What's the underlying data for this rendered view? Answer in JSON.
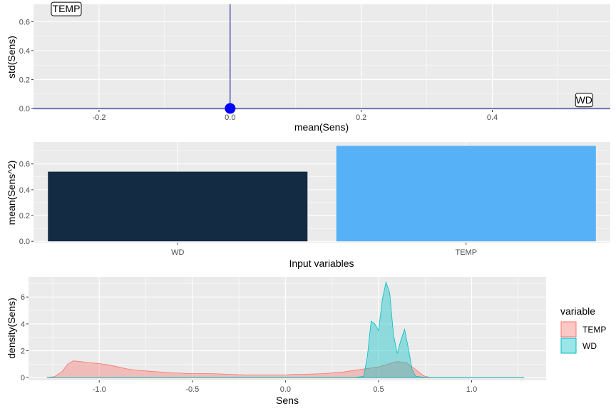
{
  "chart_data": [
    {
      "type": "scatter",
      "xlabel": "mean(Sens)",
      "ylabel": "std(Sens)",
      "xlim": [
        -0.3,
        0.58
      ],
      "ylim": [
        -0.01,
        0.72
      ],
      "x_ticks": [
        -0.2,
        0.0,
        0.2,
        0.4
      ],
      "x_tick_labels": [
        "-0.2",
        "0.0",
        "0.2",
        "0.4"
      ],
      "y_ticks": [
        0.0,
        0.2,
        0.4,
        0.6
      ],
      "y_tick_labels": [
        "0.0",
        "0.2",
        "0.4",
        "0.6"
      ],
      "points": [
        {
          "x": 0.0,
          "y": 0.0,
          "color": "#0000FF"
        }
      ],
      "vline_x": 0.0,
      "hline_y": 0.0,
      "line_color": "#00008B",
      "labels": [
        {
          "text": "TEMP",
          "x": -0.25,
          "y": 0.69
        },
        {
          "text": "WD",
          "x": 0.54,
          "y": 0.06
        }
      ],
      "grid": true
    },
    {
      "type": "bar",
      "xlabel": "Input variables",
      "ylabel": "mean(Sens^2)",
      "categories": [
        "WD",
        "TEMP"
      ],
      "values": [
        0.54,
        0.74
      ],
      "colors": [
        "#132B43",
        "#56B1F7"
      ],
      "ylim": [
        -0.01,
        0.77
      ],
      "y_ticks": [
        0.0,
        0.2,
        0.4,
        0.6
      ],
      "y_tick_labels": [
        "0.0",
        "0.2",
        "0.4",
        "0.6"
      ],
      "grid": true
    },
    {
      "type": "area",
      "xlabel": "Sens",
      "ylabel": "density(Sens)",
      "xlim": [
        -1.38,
        1.4
      ],
      "ylim": [
        -0.2,
        7.5
      ],
      "x_ticks": [
        -1.0,
        -0.5,
        0.0,
        0.5,
        1.0
      ],
      "x_tick_labels": [
        "-1.0",
        "-0.5",
        "0.0",
        "0.5",
        "1.0"
      ],
      "y_ticks": [
        0,
        2,
        4,
        6
      ],
      "y_tick_labels": [
        "0",
        "2",
        "4",
        "6"
      ],
      "legend": {
        "title": "variable",
        "position": "right"
      },
      "grid": true,
      "series": [
        {
          "name": "TEMP",
          "fill": "#F8766D",
          "x": [
            -1.28,
            -1.24,
            -1.2,
            -1.17,
            -1.14,
            -1.1,
            -1.05,
            -1.0,
            -0.95,
            -0.9,
            -0.85,
            -0.8,
            -0.75,
            -0.7,
            -0.6,
            -0.5,
            -0.4,
            -0.3,
            -0.2,
            -0.1,
            0.0,
            0.05,
            0.1,
            0.2,
            0.3,
            0.35,
            0.4,
            0.45,
            0.5,
            0.55,
            0.6,
            0.65,
            0.7,
            0.74,
            0.78,
            1.28
          ],
          "values": [
            0.0,
            0.08,
            0.45,
            1.0,
            1.25,
            1.2,
            1.1,
            1.05,
            0.95,
            0.8,
            0.65,
            0.55,
            0.5,
            0.45,
            0.35,
            0.3,
            0.3,
            0.25,
            0.2,
            0.2,
            0.2,
            0.25,
            0.25,
            0.3,
            0.4,
            0.5,
            0.6,
            0.7,
            0.8,
            1.0,
            1.2,
            1.1,
            0.6,
            0.15,
            0.0,
            0.0
          ]
        },
        {
          "name": "WD",
          "fill": "#00BFC4",
          "x": [
            -1.28,
            0.38,
            0.42,
            0.44,
            0.46,
            0.48,
            0.5,
            0.52,
            0.54,
            0.56,
            0.58,
            0.6,
            0.62,
            0.64,
            0.66,
            0.68,
            0.7,
            0.75,
            1.28
          ],
          "values": [
            0.0,
            0.02,
            0.1,
            1.6,
            4.2,
            4.0,
            3.5,
            5.8,
            7.1,
            6.3,
            3.2,
            1.8,
            2.8,
            3.6,
            2.2,
            0.6,
            0.1,
            0.02,
            0.0
          ]
        }
      ]
    }
  ]
}
